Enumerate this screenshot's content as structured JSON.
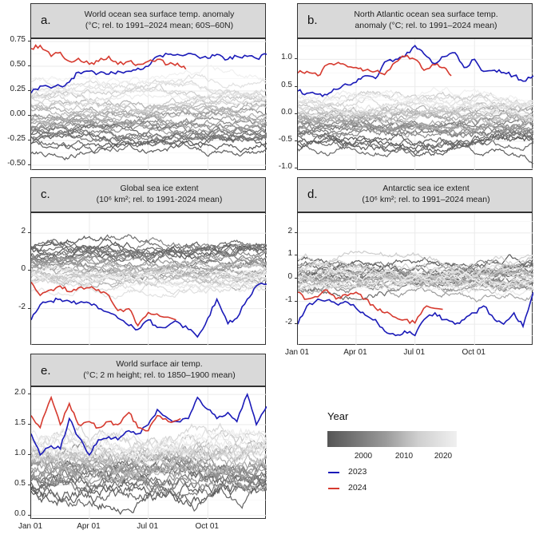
{
  "colors": {
    "y2023": "#1a1ab8",
    "y2024": "#d63a2f",
    "background_dark": "#555555",
    "background_light": "#f0f0f0"
  },
  "legend": {
    "title": "Year",
    "colorbar_range": [
      1991,
      2024
    ],
    "colorbar_ticks": [
      "2000",
      "2010",
      "2020"
    ],
    "items": [
      {
        "label": "2023",
        "color": "#1a1ab8"
      },
      {
        "label": "2024",
        "color": "#d63a2f"
      }
    ]
  },
  "chart_data": [
    {
      "id": "a",
      "type": "line",
      "panel_label": "a.",
      "title": [
        "World ocean sea surface temp. anomaly",
        "(°C; rel. to 1991–2024 mean; 60S–60N)"
      ],
      "x_ticks": [
        "Jan 01",
        "Apr 01",
        "Jul 01",
        "Oct 01"
      ],
      "x_tick_days": [
        1,
        91,
        182,
        274
      ],
      "x_labels_shown": false,
      "ylim": [
        -0.556,
        0.774
      ],
      "y_ticks": [
        0.75,
        0.5,
        0.25,
        0.0,
        -0.25,
        -0.5
      ],
      "y_tick_labels": [
        "0.75",
        "0.50",
        "0.25",
        "0.00",
        "-0.25",
        "-0.50"
      ],
      "grid": true,
      "background_years": {
        "range": [
          1991,
          2022
        ],
        "mean_first": -0.3,
        "mean_last": 0.3,
        "spread": 0.08,
        "noise": 0.045
      },
      "series": [
        {
          "name": "2023",
          "days": [
            1,
            15,
            32,
            46,
            60,
            74,
            91,
            105,
            121,
            135,
            152,
            166,
            182,
            196,
            213,
            227,
            244,
            258,
            274,
            288,
            305,
            319,
            335,
            349,
            365
          ],
          "values": [
            0.23,
            0.3,
            0.28,
            0.3,
            0.34,
            0.44,
            0.45,
            0.43,
            0.42,
            0.45,
            0.45,
            0.48,
            0.5,
            0.6,
            0.62,
            0.62,
            0.63,
            0.6,
            0.58,
            0.62,
            0.57,
            0.6,
            0.6,
            0.58,
            0.62
          ]
        },
        {
          "name": "2024",
          "days": [
            1,
            15,
            32,
            46,
            60,
            74,
            91,
            105,
            121,
            135,
            152,
            166,
            182,
            196,
            213,
            227,
            240
          ],
          "values": [
            0.68,
            0.71,
            0.6,
            0.64,
            0.55,
            0.58,
            0.52,
            0.55,
            0.6,
            0.52,
            0.55,
            0.52,
            0.55,
            0.57,
            0.52,
            0.53,
            0.47
          ]
        }
      ]
    },
    {
      "id": "b",
      "type": "line",
      "panel_label": "b.",
      "title": [
        "North Atlantic ocean sea surface temp.",
        "anomaly (°C; rel. to 1991–2024 mean)"
      ],
      "x_ticks": [
        "Jan 01",
        "Apr 01",
        "Jul 01",
        "Oct 01"
      ],
      "x_tick_days": [
        1,
        91,
        182,
        274
      ],
      "x_labels_shown": false,
      "ylim": [
        -1.04,
        1.37
      ],
      "y_ticks": [
        1.0,
        0.5,
        0.0,
        -0.5,
        -1.0
      ],
      "y_tick_labels": [
        "1.0",
        "0.5",
        "0.0",
        "-0.5",
        "-1.0"
      ],
      "grid": true,
      "background_years": {
        "range": [
          1991,
          2022
        ],
        "mean_first": -0.55,
        "mean_last": 0.3,
        "spread": 0.12,
        "noise": 0.09
      },
      "series": [
        {
          "name": "2023",
          "days": [
            1,
            15,
            32,
            46,
            60,
            74,
            91,
            105,
            121,
            135,
            152,
            166,
            182,
            196,
            213,
            227,
            244,
            258,
            274,
            288,
            305,
            319,
            335,
            349,
            365
          ],
          "values": [
            0.42,
            0.38,
            0.36,
            0.35,
            0.45,
            0.55,
            0.58,
            0.7,
            0.65,
            0.95,
            1.0,
            1.05,
            1.25,
            1.1,
            0.92,
            1.05,
            1.12,
            0.85,
            1.0,
            0.78,
            0.8,
            0.76,
            0.7,
            0.6,
            0.7
          ]
        },
        {
          "name": "2024",
          "days": [
            1,
            15,
            32,
            46,
            60,
            74,
            91,
            105,
            121,
            135,
            152,
            166,
            182,
            196,
            213,
            227,
            238
          ],
          "values": [
            0.75,
            0.78,
            0.7,
            0.9,
            0.92,
            0.9,
            0.85,
            0.8,
            0.78,
            0.72,
            0.95,
            1.05,
            1.0,
            0.8,
            0.9,
            0.85,
            0.7
          ]
        }
      ]
    },
    {
      "id": "c",
      "type": "line",
      "panel_label": "c.",
      "title": [
        "Global sea ice extent",
        "(10⁶ km²; rel. to 1991-2024 mean)"
      ],
      "x_ticks": [
        "Jan 01",
        "Apr 01",
        "Jul 01",
        "Oct 01"
      ],
      "x_tick_days": [
        1,
        91,
        182,
        274
      ],
      "x_labels_shown": false,
      "ylim": [
        -3.96,
        3.06
      ],
      "y_ticks": [
        2,
        0,
        -2
      ],
      "y_tick_labels": [
        "2",
        "0",
        "-2"
      ],
      "grid": true,
      "background_years": {
        "range": [
          1991,
          2022
        ],
        "mean_first": 1.1,
        "mean_last": -0.6,
        "spread": 0.4,
        "noise": 0.25
      },
      "series": [
        {
          "name": "2023",
          "days": [
            1,
            15,
            32,
            46,
            60,
            74,
            91,
            105,
            121,
            135,
            152,
            166,
            182,
            196,
            213,
            227,
            244,
            258,
            274,
            288,
            305,
            319,
            335,
            349,
            365
          ],
          "values": [
            -2.6,
            -1.8,
            -1.6,
            -1.5,
            -1.6,
            -1.7,
            -1.7,
            -2.0,
            -2.2,
            -2.5,
            -2.9,
            -3.1,
            -2.6,
            -3.0,
            -2.9,
            -2.7,
            -3.1,
            -3.5,
            -2.5,
            -1.5,
            -2.8,
            -2.5,
            -1.5,
            -0.8,
            -0.7
          ]
        },
        {
          "name": "2024",
          "days": [
            1,
            15,
            32,
            46,
            60,
            74,
            91,
            105,
            121,
            135,
            152,
            166,
            182,
            200,
            225
          ],
          "values": [
            -0.6,
            -1.3,
            -1.0,
            -0.8,
            -1.1,
            -0.9,
            -0.9,
            -1.0,
            -1.3,
            -2.1,
            -2.0,
            -2.9,
            -2.2,
            -2.4,
            -2.6
          ]
        }
      ]
    },
    {
      "id": "d",
      "type": "line",
      "panel_label": "d.",
      "title": [
        "Antarctic sea ice extent",
        "(10⁶ km²; rel. to 1991–2024 mean)"
      ],
      "x_ticks": [
        "Jan 01",
        "Apr 01",
        "Jul 01",
        "Oct 01"
      ],
      "x_tick_days": [
        1,
        91,
        182,
        274
      ],
      "x_labels_shown": true,
      "ylim": [
        -2.94,
        2.87
      ],
      "y_ticks": [
        2,
        1,
        0,
        -1,
        -2
      ],
      "y_tick_labels": [
        "2",
        "1",
        "0",
        "-1",
        "-2"
      ],
      "grid": true,
      "background_years": {
        "range": [
          1991,
          2022
        ],
        "mean_first": 0.1,
        "mean_last": 0.2,
        "spread": 0.5,
        "noise": 0.2
      },
      "series": [
        {
          "name": "2023",
          "days": [
            1,
            15,
            32,
            46,
            60,
            74,
            91,
            105,
            121,
            135,
            152,
            166,
            182,
            196,
            213,
            227,
            244,
            258,
            274,
            288,
            305,
            319,
            335,
            349,
            365
          ],
          "values": [
            -2.0,
            -1.2,
            -0.9,
            -0.95,
            -1.1,
            -1.0,
            -1.3,
            -1.6,
            -1.8,
            -2.3,
            -2.5,
            -2.3,
            -2.5,
            -1.8,
            -1.5,
            -1.8,
            -2.0,
            -1.8,
            -1.5,
            -1.2,
            -1.8,
            -2.0,
            -1.5,
            -2.1,
            -0.6
          ]
        },
        {
          "name": "2024",
          "days": [
            1,
            15,
            32,
            46,
            60,
            74,
            91,
            105,
            121,
            135,
            152,
            166,
            182,
            200,
            225
          ],
          "values": [
            -0.6,
            -0.9,
            -0.8,
            -0.5,
            -0.9,
            -0.7,
            -0.6,
            -0.9,
            -1.3,
            -1.5,
            -1.7,
            -1.8,
            -1.95,
            -1.2,
            -1.35
          ]
        }
      ]
    },
    {
      "id": "e",
      "type": "line",
      "panel_label": "e.",
      "title": [
        "World surface air temp.",
        "(°C; 2 m height; rel. to 1850–1900 mean)"
      ],
      "x_ticks": [
        "Jan 01",
        "Apr 01",
        "Jul 01",
        "Oct 01"
      ],
      "x_tick_days": [
        1,
        91,
        182,
        274
      ],
      "x_labels_shown": true,
      "ylim": [
        -0.07,
        2.12
      ],
      "y_ticks": [
        2.0,
        1.5,
        1.0,
        0.5,
        0.0
      ],
      "y_tick_labels": [
        "2.0",
        "1.5",
        "1.0",
        "0.5",
        "0.0"
      ],
      "grid": true,
      "background_years": {
        "range": [
          1991,
          2022
        ],
        "mean_first": 0.45,
        "mean_last": 1.25,
        "spread": 0.12,
        "noise": 0.14
      },
      "series": [
        {
          "name": "2023",
          "days": [
            1,
            15,
            32,
            46,
            60,
            74,
            91,
            105,
            121,
            135,
            152,
            166,
            182,
            196,
            213,
            227,
            244,
            258,
            274,
            288,
            305,
            319,
            335,
            349,
            365
          ],
          "values": [
            1.35,
            1.0,
            1.15,
            1.1,
            1.6,
            1.3,
            1.0,
            1.25,
            1.3,
            1.25,
            1.4,
            1.35,
            1.5,
            1.75,
            1.6,
            1.55,
            1.6,
            1.95,
            1.75,
            1.6,
            1.7,
            1.55,
            2.0,
            1.5,
            1.8
          ]
        },
        {
          "name": "2024",
          "days": [
            1,
            15,
            32,
            46,
            60,
            74,
            91,
            105,
            121,
            135,
            152,
            166,
            182,
            196,
            213,
            232
          ],
          "values": [
            1.65,
            1.45,
            1.95,
            1.5,
            1.85,
            1.5,
            1.55,
            1.45,
            1.55,
            1.5,
            1.7,
            1.45,
            1.4,
            1.65,
            1.55,
            1.6
          ]
        }
      ]
    }
  ]
}
